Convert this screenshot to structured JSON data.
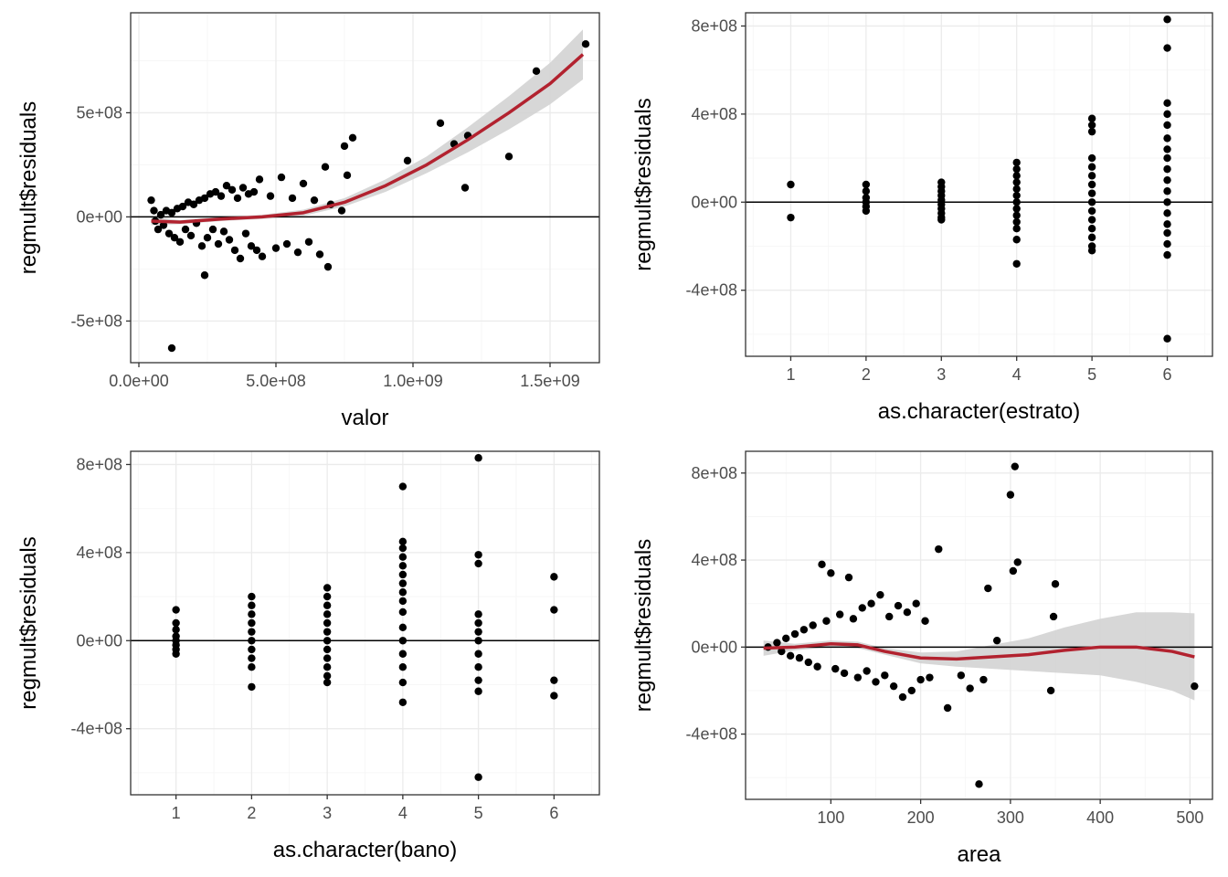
{
  "figure": {
    "background": "#ffffff"
  },
  "style": {
    "panel_border": "#333333",
    "grid_major": "#ebebeb",
    "grid_minor": "#f5f5f5",
    "point_color": "#000000",
    "smooth_color": "#b2222f",
    "ribbon_color": "#d3d3d3",
    "hline_color": "#000000"
  },
  "chart_data": [
    {
      "type": "scatter",
      "xlabel": "valor",
      "ylabel": "regmult$residuals",
      "xlim": [
        -30000000,
        1680000000
      ],
      "ylim": [
        -700000000,
        980000000
      ],
      "x_ticks": [
        0,
        500000000,
        1000000000,
        1500000000
      ],
      "x_tick_labels": [
        "0.0e+00",
        "5.0e+08",
        "1.0e+09",
        "1.5e+09"
      ],
      "y_ticks": [
        -500000000,
        0,
        500000000
      ],
      "y_tick_labels": [
        "-5e+08",
        "0e+00",
        "5e+08"
      ],
      "grid": true,
      "hline": 0,
      "points": [
        [
          45000000,
          80000000
        ],
        [
          60000000,
          -20000000
        ],
        [
          55000000,
          30000000
        ],
        [
          70000000,
          -60000000
        ],
        [
          80000000,
          10000000
        ],
        [
          90000000,
          -40000000
        ],
        [
          100000000,
          30000000
        ],
        [
          110000000,
          -80000000
        ],
        [
          120000000,
          20000000
        ],
        [
          130000000,
          -100000000
        ],
        [
          140000000,
          40000000
        ],
        [
          150000000,
          -120000000
        ],
        [
          160000000,
          50000000
        ],
        [
          170000000,
          -60000000
        ],
        [
          180000000,
          70000000
        ],
        [
          190000000,
          -90000000
        ],
        [
          200000000,
          60000000
        ],
        [
          210000000,
          -30000000
        ],
        [
          220000000,
          80000000
        ],
        [
          230000000,
          -140000000
        ],
        [
          240000000,
          90000000
        ],
        [
          250000000,
          -100000000
        ],
        [
          260000000,
          110000000
        ],
        [
          270000000,
          -60000000
        ],
        [
          280000000,
          120000000
        ],
        [
          290000000,
          -130000000
        ],
        [
          300000000,
          100000000
        ],
        [
          310000000,
          -70000000
        ],
        [
          320000000,
          150000000
        ],
        [
          330000000,
          -110000000
        ],
        [
          340000000,
          130000000
        ],
        [
          350000000,
          -160000000
        ],
        [
          360000000,
          90000000
        ],
        [
          370000000,
          -200000000
        ],
        [
          380000000,
          140000000
        ],
        [
          390000000,
          -80000000
        ],
        [
          400000000,
          110000000
        ],
        [
          410000000,
          -140000000
        ],
        [
          420000000,
          120000000
        ],
        [
          430000000,
          -160000000
        ],
        [
          440000000,
          180000000
        ],
        [
          450000000,
          -190000000
        ],
        [
          480000000,
          100000000
        ],
        [
          500000000,
          -150000000
        ],
        [
          520000000,
          190000000
        ],
        [
          540000000,
          -130000000
        ],
        [
          560000000,
          90000000
        ],
        [
          580000000,
          -170000000
        ],
        [
          600000000,
          160000000
        ],
        [
          620000000,
          -120000000
        ],
        [
          640000000,
          80000000
        ],
        [
          660000000,
          -180000000
        ],
        [
          680000000,
          240000000
        ],
        [
          690000000,
          -240000000
        ],
        [
          700000000,
          60000000
        ],
        [
          120000000,
          -630000000
        ],
        [
          240000000,
          -280000000
        ],
        [
          750000000,
          340000000
        ],
        [
          760000000,
          200000000
        ],
        [
          780000000,
          380000000
        ],
        [
          740000000,
          30000000
        ],
        [
          980000000,
          270000000
        ],
        [
          1100000000,
          450000000
        ],
        [
          1150000000,
          350000000
        ],
        [
          1190000000,
          140000000
        ],
        [
          1200000000,
          390000000
        ],
        [
          1350000000,
          290000000
        ],
        [
          1450000000,
          700000000
        ],
        [
          1630000000,
          830000000
        ]
      ],
      "smooth": {
        "x": [
          45000000,
          150000000,
          300000000,
          450000000,
          600000000,
          750000000,
          900000000,
          1050000000,
          1200000000,
          1350000000,
          1500000000,
          1620000000
        ],
        "y": [
          -20000000,
          -25000000,
          -10000000,
          0,
          20000000,
          70000000,
          150000000,
          250000000,
          370000000,
          500000000,
          640000000,
          780000000
        ],
        "lower": [
          -40000000,
          -35000000,
          -20000000,
          -10000000,
          5000000,
          50000000,
          120000000,
          210000000,
          310000000,
          420000000,
          540000000,
          660000000
        ],
        "upper": [
          0,
          -15000000,
          0,
          10000000,
          35000000,
          90000000,
          180000000,
          290000000,
          430000000,
          580000000,
          740000000,
          900000000
        ]
      }
    },
    {
      "type": "scatter",
      "xlabel": "as.character(estrato)",
      "ylabel": "regmult$residuals",
      "xlim": [
        0.4,
        6.6
      ],
      "ylim": [
        -700000000,
        860000000
      ],
      "x_ticks": [
        1,
        2,
        3,
        4,
        5,
        6
      ],
      "x_tick_labels": [
        "1",
        "2",
        "3",
        "4",
        "5",
        "6"
      ],
      "y_ticks": [
        -400000000,
        0,
        400000000,
        800000000
      ],
      "y_tick_labels": [
        "-4e+08",
        "0e+00",
        "4e+08",
        "8e+08"
      ],
      "grid": true,
      "hline": 0,
      "points": [
        [
          1,
          80000000
        ],
        [
          1,
          -70000000
        ],
        [
          2,
          80000000
        ],
        [
          2,
          50000000
        ],
        [
          2,
          20000000
        ],
        [
          2,
          0
        ],
        [
          2,
          -20000000
        ],
        [
          2,
          -40000000
        ],
        [
          3,
          90000000
        ],
        [
          3,
          70000000
        ],
        [
          3,
          50000000
        ],
        [
          3,
          30000000
        ],
        [
          3,
          10000000
        ],
        [
          3,
          -10000000
        ],
        [
          3,
          -30000000
        ],
        [
          3,
          -50000000
        ],
        [
          3,
          -70000000
        ],
        [
          3,
          -80000000
        ],
        [
          4,
          180000000
        ],
        [
          4,
          150000000
        ],
        [
          4,
          120000000
        ],
        [
          4,
          90000000
        ],
        [
          4,
          60000000
        ],
        [
          4,
          30000000
        ],
        [
          4,
          0
        ],
        [
          4,
          -30000000
        ],
        [
          4,
          -60000000
        ],
        [
          4,
          -90000000
        ],
        [
          4,
          -120000000
        ],
        [
          4,
          -170000000
        ],
        [
          4,
          -280000000
        ],
        [
          5,
          380000000
        ],
        [
          5,
          350000000
        ],
        [
          5,
          320000000
        ],
        [
          5,
          200000000
        ],
        [
          5,
          160000000
        ],
        [
          5,
          120000000
        ],
        [
          5,
          80000000
        ],
        [
          5,
          40000000
        ],
        [
          5,
          0
        ],
        [
          5,
          -40000000
        ],
        [
          5,
          -80000000
        ],
        [
          5,
          -120000000
        ],
        [
          5,
          -160000000
        ],
        [
          5,
          -200000000
        ],
        [
          5,
          -220000000
        ],
        [
          6,
          830000000
        ],
        [
          6,
          700000000
        ],
        [
          6,
          450000000
        ],
        [
          6,
          400000000
        ],
        [
          6,
          350000000
        ],
        [
          6,
          290000000
        ],
        [
          6,
          240000000
        ],
        [
          6,
          200000000
        ],
        [
          6,
          150000000
        ],
        [
          6,
          100000000
        ],
        [
          6,
          50000000
        ],
        [
          6,
          0
        ],
        [
          6,
          -50000000
        ],
        [
          6,
          -100000000
        ],
        [
          6,
          -140000000
        ],
        [
          6,
          -190000000
        ],
        [
          6,
          -240000000
        ],
        [
          6,
          -620000000
        ]
      ]
    },
    {
      "type": "scatter",
      "xlabel": "as.character(bano)",
      "ylabel": "regmult$residuals",
      "xlim": [
        0.4,
        6.6
      ],
      "ylim": [
        -700000000,
        860000000
      ],
      "x_ticks": [
        1,
        2,
        3,
        4,
        5,
        6
      ],
      "x_tick_labels": [
        "1",
        "2",
        "3",
        "4",
        "5",
        "6"
      ],
      "y_ticks": [
        -400000000,
        0,
        400000000,
        800000000
      ],
      "y_tick_labels": [
        "-4e+08",
        "0e+00",
        "4e+08",
        "8e+08"
      ],
      "grid": true,
      "hline": 0,
      "points": [
        [
          1,
          140000000
        ],
        [
          1,
          80000000
        ],
        [
          1,
          50000000
        ],
        [
          1,
          20000000
        ],
        [
          1,
          0
        ],
        [
          1,
          -20000000
        ],
        [
          1,
          -40000000
        ],
        [
          1,
          -60000000
        ],
        [
          2,
          200000000
        ],
        [
          2,
          160000000
        ],
        [
          2,
          120000000
        ],
        [
          2,
          80000000
        ],
        [
          2,
          40000000
        ],
        [
          2,
          0
        ],
        [
          2,
          -40000000
        ],
        [
          2,
          -80000000
        ],
        [
          2,
          -120000000
        ],
        [
          2,
          -210000000
        ],
        [
          3,
          240000000
        ],
        [
          3,
          200000000
        ],
        [
          3,
          160000000
        ],
        [
          3,
          120000000
        ],
        [
          3,
          80000000
        ],
        [
          3,
          40000000
        ],
        [
          3,
          0
        ],
        [
          3,
          -40000000
        ],
        [
          3,
          -80000000
        ],
        [
          3,
          -120000000
        ],
        [
          3,
          -160000000
        ],
        [
          3,
          -190000000
        ],
        [
          4,
          700000000
        ],
        [
          4,
          450000000
        ],
        [
          4,
          420000000
        ],
        [
          4,
          380000000
        ],
        [
          4,
          340000000
        ],
        [
          4,
          300000000
        ],
        [
          4,
          260000000
        ],
        [
          4,
          220000000
        ],
        [
          4,
          180000000
        ],
        [
          4,
          130000000
        ],
        [
          4,
          60000000
        ],
        [
          4,
          0
        ],
        [
          4,
          -60000000
        ],
        [
          4,
          -120000000
        ],
        [
          4,
          -190000000
        ],
        [
          4,
          -280000000
        ],
        [
          5,
          830000000
        ],
        [
          5,
          390000000
        ],
        [
          5,
          350000000
        ],
        [
          5,
          120000000
        ],
        [
          5,
          80000000
        ],
        [
          5,
          40000000
        ],
        [
          5,
          0
        ],
        [
          5,
          -60000000
        ],
        [
          5,
          -120000000
        ],
        [
          5,
          -180000000
        ],
        [
          5,
          -230000000
        ],
        [
          5,
          -620000000
        ],
        [
          6,
          290000000
        ],
        [
          6,
          140000000
        ],
        [
          6,
          -180000000
        ],
        [
          6,
          -250000000
        ]
      ]
    },
    {
      "type": "scatter",
      "xlabel": "area",
      "ylabel": "regmult$residuals",
      "xlim": [
        5,
        525
      ],
      "ylim": [
        -700000000,
        900000000
      ],
      "x_ticks": [
        100,
        200,
        300,
        400,
        500
      ],
      "x_tick_labels": [
        "100",
        "200",
        "300",
        "400",
        "500"
      ],
      "y_ticks": [
        -400000000,
        0,
        400000000,
        800000000
      ],
      "y_tick_labels": [
        "-4e+08",
        "0e+00",
        "4e+08",
        "8e+08"
      ],
      "grid": true,
      "hline": 0,
      "points": [
        [
          30,
          0
        ],
        [
          40,
          20000000
        ],
        [
          45,
          -20000000
        ],
        [
          50,
          40000000
        ],
        [
          55,
          -40000000
        ],
        [
          60,
          60000000
        ],
        [
          65,
          -50000000
        ],
        [
          70,
          80000000
        ],
        [
          75,
          -70000000
        ],
        [
          80,
          100000000
        ],
        [
          85,
          -90000000
        ],
        [
          90,
          380000000
        ],
        [
          95,
          120000000
        ],
        [
          100,
          340000000
        ],
        [
          105,
          -100000000
        ],
        [
          110,
          150000000
        ],
        [
          115,
          -120000000
        ],
        [
          120,
          320000000
        ],
        [
          125,
          130000000
        ],
        [
          130,
          -140000000
        ],
        [
          135,
          180000000
        ],
        [
          140,
          -110000000
        ],
        [
          145,
          200000000
        ],
        [
          150,
          -160000000
        ],
        [
          155,
          240000000
        ],
        [
          160,
          -130000000
        ],
        [
          165,
          140000000
        ],
        [
          170,
          -180000000
        ],
        [
          175,
          190000000
        ],
        [
          180,
          -230000000
        ],
        [
          185,
          160000000
        ],
        [
          190,
          -200000000
        ],
        [
          195,
          200000000
        ],
        [
          200,
          -150000000
        ],
        [
          205,
          120000000
        ],
        [
          210,
          -140000000
        ],
        [
          220,
          450000000
        ],
        [
          230,
          -280000000
        ],
        [
          245,
          -130000000
        ],
        [
          255,
          -190000000
        ],
        [
          265,
          -630000000
        ],
        [
          270,
          -150000000
        ],
        [
          275,
          270000000
        ],
        [
          285,
          30000000
        ],
        [
          300,
          700000000
        ],
        [
          303,
          350000000
        ],
        [
          305,
          830000000
        ],
        [
          308,
          390000000
        ],
        [
          345,
          -200000000
        ],
        [
          348,
          140000000
        ],
        [
          350,
          290000000
        ],
        [
          505,
          -180000000
        ]
      ],
      "smooth": {
        "x": [
          25,
          60,
          100,
          130,
          160,
          200,
          240,
          280,
          320,
          360,
          400,
          440,
          480,
          505
        ],
        "y": [
          -5000000,
          0,
          15000000,
          10000000,
          -20000000,
          -50000000,
          -55000000,
          -45000000,
          -35000000,
          -15000000,
          0,
          0,
          -20000000,
          -45000000
        ],
        "lower": [
          -40000000,
          -15000000,
          0,
          -5000000,
          -35000000,
          -75000000,
          -90000000,
          -100000000,
          -110000000,
          -120000000,
          -130000000,
          -160000000,
          -200000000,
          -245000000
        ],
        "upper": [
          30000000,
          15000000,
          30000000,
          25000000,
          -5000000,
          -25000000,
          -20000000,
          10000000,
          40000000,
          90000000,
          130000000,
          160000000,
          160000000,
          155000000
        ]
      }
    }
  ]
}
